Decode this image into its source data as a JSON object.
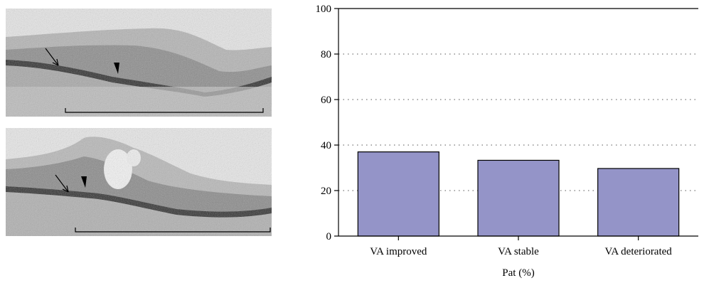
{
  "chart_data": {
    "type": "bar",
    "categories": [
      "VA improved",
      "VA stable",
      "VA deteriorated"
    ],
    "values": [
      37,
      33.3,
      29.7
    ],
    "xlabel": "Pat (%)",
    "ylabel": "",
    "ylim": [
      0,
      100
    ],
    "yticks": [
      "0",
      "20",
      "40",
      "60",
      "80",
      "100"
    ],
    "grid": true,
    "bar_color": "#9494c8"
  },
  "images": {
    "top": "OCT scan with arrow and arrowhead markers",
    "bottom": "OCT scan with arrow and arrowhead markers"
  }
}
